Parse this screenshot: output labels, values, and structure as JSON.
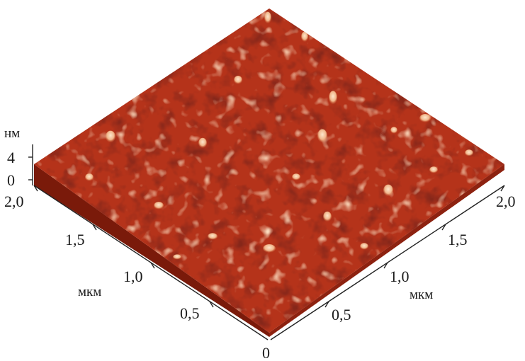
{
  "figure": {
    "height_axis": {
      "unit": "нм",
      "ticks": [
        "4",
        "0"
      ]
    },
    "left_axis": {
      "unit": "мкм",
      "ticks": [
        "2,0",
        "1,5",
        "1,0",
        "0,5"
      ]
    },
    "right_axis": {
      "unit": "мкм",
      "ticks": [
        "0,5",
        "1,0",
        "1,5",
        "2,0"
      ]
    },
    "origin_label": "0",
    "colors": {
      "surface_dark": "#5a0f06",
      "surface_mid": "#b5331a",
      "surface_light": "#f3c9a2",
      "axis": "#222222"
    }
  }
}
